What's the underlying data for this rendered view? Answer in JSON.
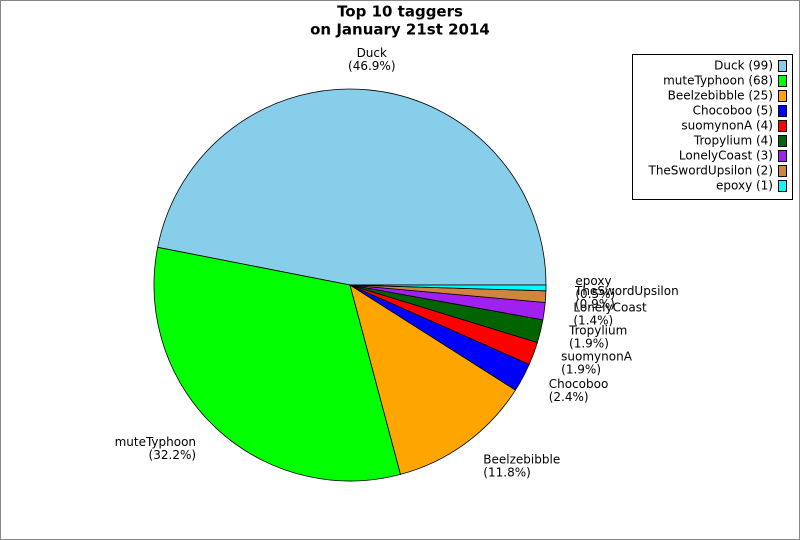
{
  "chart_data": {
    "type": "pie",
    "title": [
      "Top 10 taggers",
      "on January 21st 2014"
    ],
    "categories": [
      "Duck",
      "muteTyphoon",
      "Beelzebibble",
      "Chocoboo",
      "suomynonA",
      "Tropylium",
      "LonelyCoast",
      "TheSwordUpsilon",
      "epoxy"
    ],
    "values": [
      99,
      68,
      25,
      5,
      4,
      4,
      3,
      2,
      1
    ],
    "value_labels": [
      "(46.9%)",
      "(32.2%)",
      "(11.8%)",
      "(2.4%)",
      "(1.9%)",
      "(1.9%)",
      "(1.4%)",
      "(0.9%)",
      "(0.5%)"
    ],
    "legend_labels": [
      "Duck (99)",
      "muteTyphoon (68)",
      "Beelzebibble (25)",
      "Chocoboo (5)",
      "suomynonA (4)",
      "Tropylium (4)",
      "LonelyCoast (3)",
      "TheSwordUpsilon (2)",
      "epoxy (1)"
    ],
    "colors": [
      "#87ceeb",
      "#00ff00",
      "#ffa500",
      "#0000ff",
      "#ff0000",
      "#006400",
      "#a020f0",
      "#cd853f",
      "#00ffff"
    ],
    "legend": "upper right"
  }
}
